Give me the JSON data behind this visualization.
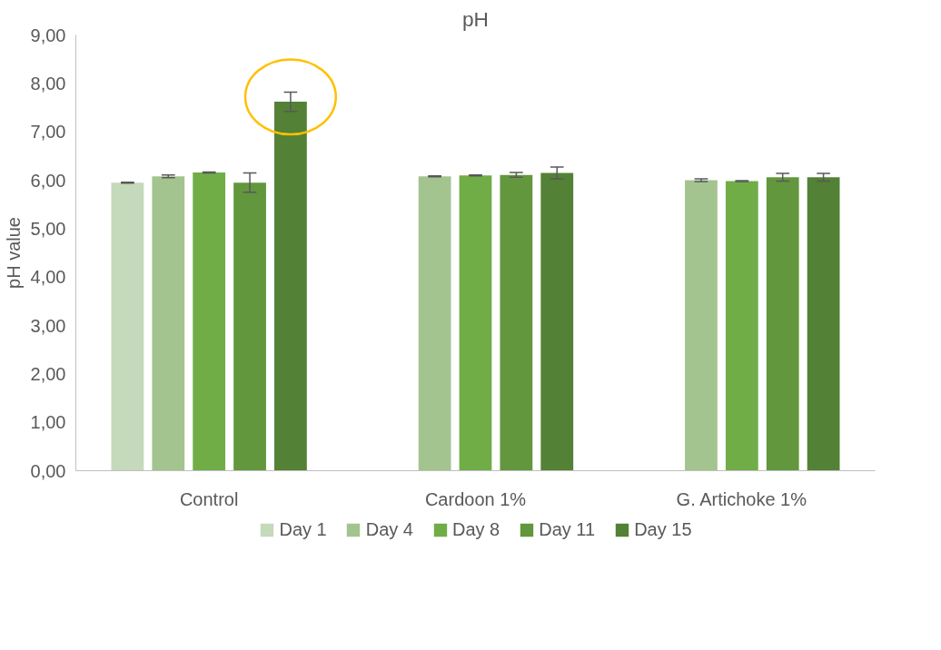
{
  "chart_data": {
    "type": "bar",
    "title": "pH",
    "ylabel": "pH value",
    "categories": [
      "Control",
      "Cardoon 1%",
      "G. Artichoke 1%"
    ],
    "series": [
      {
        "name": "Day 1",
        "color": "#c5d9bb",
        "values": [
          5.95,
          null,
          null
        ],
        "errors": [
          0.01,
          null,
          null
        ]
      },
      {
        "name": "Day 4",
        "color": "#a3c48f",
        "values": [
          6.08,
          6.08,
          6.0
        ],
        "errors": [
          0.03,
          0.01,
          0.03
        ]
      },
      {
        "name": "Day 8",
        "color": "#70ad47",
        "values": [
          6.16,
          6.1,
          5.98
        ],
        "errors": [
          0.01,
          0.01,
          0.01
        ]
      },
      {
        "name": "Day 11",
        "color": "#62973d",
        "values": [
          5.95,
          6.11,
          6.06
        ],
        "errors": [
          0.2,
          0.05,
          0.08
        ]
      },
      {
        "name": "Day 15",
        "color": "#538135",
        "values": [
          7.62,
          6.15,
          6.06
        ],
        "errors": [
          0.2,
          0.12,
          0.08
        ]
      }
    ],
    "ylim": [
      0,
      9
    ],
    "yticks": [
      {
        "value": 0,
        "label": "0,00"
      },
      {
        "value": 1,
        "label": "1,00"
      },
      {
        "value": 2,
        "label": "2,00"
      },
      {
        "value": 3,
        "label": "3,00"
      },
      {
        "value": 4,
        "label": "4,00"
      },
      {
        "value": 5,
        "label": "5,00"
      },
      {
        "value": 6,
        "label": "6,00"
      },
      {
        "value": 7,
        "label": "7,00"
      },
      {
        "value": 8,
        "label": "8,00"
      },
      {
        "value": 9,
        "label": "9,00"
      }
    ],
    "grid": false,
    "legend": "bottom"
  }
}
